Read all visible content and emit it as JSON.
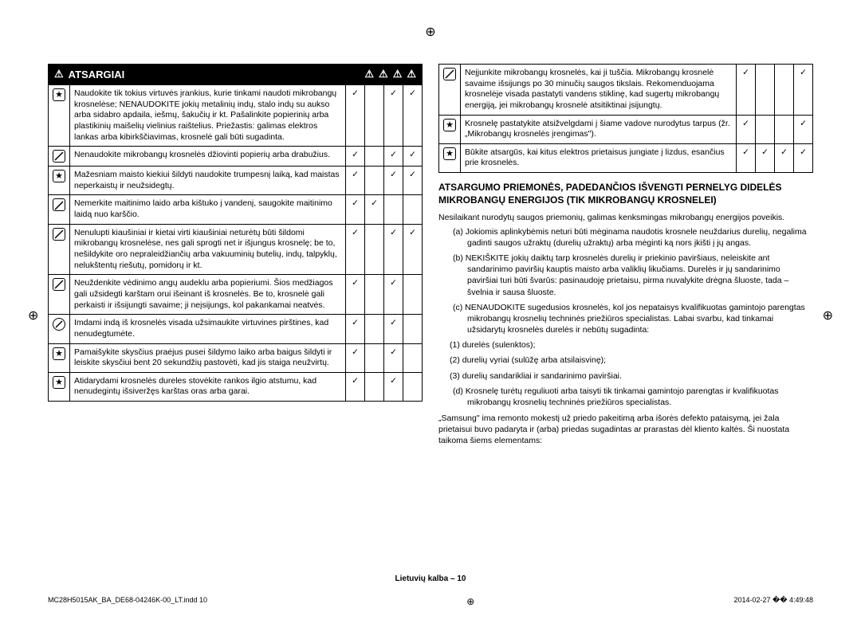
{
  "cropmarks": {
    "target": "⊕"
  },
  "header": {
    "warn_icon": "⚠",
    "title": "ATSARGIAI"
  },
  "left_rows": [
    {
      "icon": "star",
      "text": "Naudokite tik tokius virtuvės įrankius, kurie tinkami naudoti mikrobangų krosnelėse; NENAUDOKITE jokių metalinių indų, stalo indų su aukso arba sidabro apdaila, iešmų, šakučių ir kt.\nPašalinkite popierinių arba plastikinių maišelių vielinius raištelius.\nPriežastis: galimas elektros lankas arba kibirkščiavimas, krosnelė gali būti sugadinta.",
      "c": [
        "✓",
        "",
        "✓",
        "✓"
      ]
    },
    {
      "icon": "slash",
      "text": "Nenaudokite mikrobangų krosnelės džiovinti popierių arba drabužius.",
      "c": [
        "✓",
        "",
        "✓",
        "✓"
      ]
    },
    {
      "icon": "star",
      "text": "Mažesniam maisto kiekiui šildyti naudokite trumpesnį laiką, kad maistas neperkaistų ir neužsidegtų.",
      "c": [
        "✓",
        "",
        "✓",
        "✓"
      ]
    },
    {
      "icon": "slash",
      "text": "Nemerkite maitinimo laido arba kištuko į vandenį, saugokite maitinimo laidą nuo karščio.",
      "c": [
        "✓",
        "✓",
        "",
        ""
      ]
    },
    {
      "icon": "slash",
      "text": "Nenulupti kiaušiniai ir kietai virti kiaušiniai neturėtų būti šildomi mikrobangų krosnelėse, nes gali sprogti net ir išjungus krosnelę; be to, nešildykite oro nepraleidžiančių arba vakuuminių butelių, indų, talpyklų, nelukštentų riešutų, pomidorų ir kt.",
      "c": [
        "✓",
        "",
        "✓",
        "✓"
      ]
    },
    {
      "icon": "slash",
      "text": "Neuždenkite vėdinimo angų audeklu arba popieriumi. Šios medžiagos gali užsidegti karštam orui išeinant iš krosnelės. Be to, krosnelė gali perkaisti ir išsijungti savaime; ji neįsijungs, kol pakankamai neatvės.",
      "c": [
        "✓",
        "",
        "✓",
        ""
      ]
    },
    {
      "icon": "slashcircle",
      "text": "Imdami indą iš krosnelės visada užsimaukite virtuvines pirštines, kad nenudegtumėte.",
      "c": [
        "✓",
        "",
        "✓",
        ""
      ]
    },
    {
      "icon": "star",
      "text": "Pamaišykite skysčius praėjus pusei šildymo laiko arba baigus šildyti ir leiskite skysčiui bent 20 sekundžių pastovėti, kad jis staiga neužvirtų.",
      "c": [
        "✓",
        "",
        "✓",
        ""
      ]
    },
    {
      "icon": "star",
      "text": "Atidarydami krosnelės dureles stovėkite rankos ilgio atstumu, kad nenudegintų išsiveržęs karštas oras arba garai.",
      "c": [
        "✓",
        "",
        "✓",
        ""
      ]
    }
  ],
  "right_rows": [
    {
      "icon": "slash",
      "text": "Neįjunkite mikrobangų krosnelės, kai ji tuščia. Mikrobangų krosnelė savaime išsijungs po 30 minučių saugos tikslais. Rekomenduojama krosnelėje visada pastatyti vandens stiklinę, kad sugertų mikrobangų energiją, jei mikrobangų krosnelė atsitiktinai įsijungtų.",
      "c": [
        "✓",
        "",
        "",
        "✓"
      ]
    },
    {
      "icon": "star",
      "text": "Krosnelę pastatykite atsižvelgdami į šiame vadove nurodytus tarpus (žr. „Mikrobangų krosnelės įrengimas\").",
      "c": [
        "✓",
        "",
        "",
        "✓"
      ]
    },
    {
      "icon": "star",
      "text": "Būkite atsargūs, kai kitus elektros prietaisus jungiate į lizdus, esančius prie krosnelės.",
      "c": [
        "✓",
        "✓",
        "✓",
        "✓"
      ]
    }
  ],
  "section2": {
    "heading": "ATSARGUMO PRIEMONĖS, PADEDANČIOS IŠVENGTI PERNELYG DIDELĖS MIKROBANGŲ ENERGIJOS (TIK MIKROBANGŲ KROSNELEI)",
    "intro": "Nesilaikant nurodytų saugos priemonių, galimas kenksmingas mikrobangų energijos poveikis.",
    "items": [
      "(a) Jokiomis aplinkybėmis neturi būti mėginama naudotis krosnele neuždarius durelių, negalima gadinti saugos užraktų (durelių užraktų) arba mėginti ką nors įkišti į jų angas.",
      "(b) NEKIŠKITE jokių daiktų tarp krosnelės durelių ir priekinio paviršiaus, neleiskite ant sandarinimo paviršių kauptis maisto arba valiklių likučiams. Durelės ir jų sandarinimo paviršiai turi būti švarūs: pasinaudoję prietaisu, pirma nuvalykite drėgna šluoste, tada – švelnia ir sausa šluoste.",
      "(c) NENAUDOKITE sugedusios krosnelės, kol jos nepataisys kvalifikuotas gamintojo parengtas mikrobangų krosnelių techninės priežiūros specialistas. Labai svarbu, kad tinkamai užsidarytų krosnelės durelės ir nebūtų sugadinta:"
    ],
    "subitems": [
      "(1) durelės (sulenktos);",
      "(2) durelių vyriai (sulūžę arba atsilaisvinę);",
      "(3) durelių sandarikliai ir sandarinimo paviršiai."
    ],
    "item_d": "(d) Krosnelę turėtų reguliuoti arba taisyti tik tinkamai gamintojo parengtas ir kvalifikuotas mikrobangų krosnelių techninės priežiūros specialistas.",
    "outro": "„Samsung\" ima remonto mokestį už priedo pakeitimą arba išorės defekto pataisymą, jei žala prietaisui buvo padaryta ir (arba) priedas sugadintas ar prarastas dėl kliento kaltės. Ši nuostata taikoma šiems elementams:"
  },
  "page_label": "Lietuvių kalba – 10",
  "footer": {
    "file": "MC28H5015AK_BA_DE68-04246K-00_LT.indd   10",
    "date": "2014-02-27   �� 4:49:48"
  },
  "colors": {
    "header_bg": "#000000",
    "header_fg": "#ffffff",
    "border": "#000000"
  }
}
